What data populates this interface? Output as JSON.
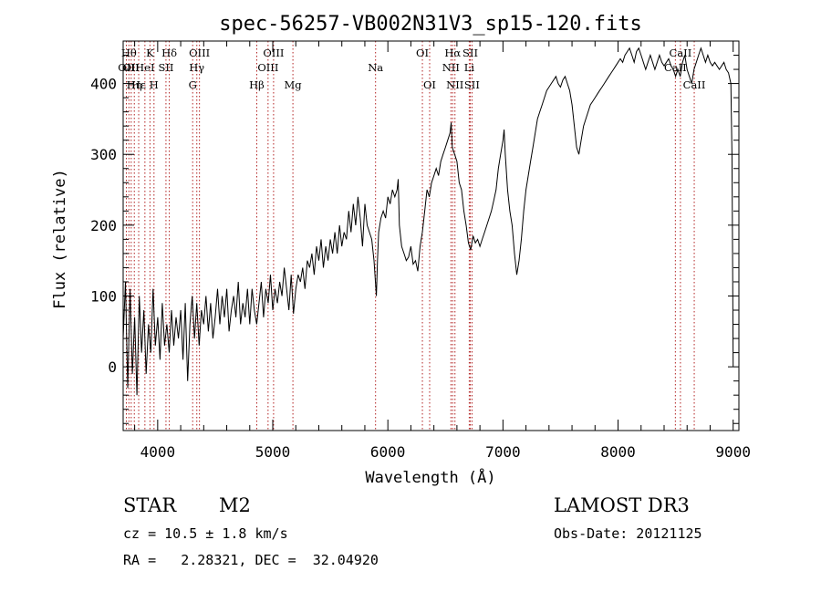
{
  "chart_data": {
    "type": "line",
    "title": "spec-56257-VB002N31V3_sp15-120.fits",
    "xlabel": "Wavelength (Å)",
    "ylabel": "Flux (relative)",
    "xlim": [
      3700,
      9050
    ],
    "ylim": [
      -90,
      460
    ],
    "xticks": [
      4000,
      5000,
      6000,
      7000,
      8000,
      9000
    ],
    "yticks": [
      0,
      100,
      200,
      300,
      400
    ],
    "grid": false,
    "series": [
      {
        "name": "flux",
        "color": "#000000",
        "points": [
          [
            3700,
            40
          ],
          [
            3720,
            120
          ],
          [
            3740,
            -30
          ],
          [
            3760,
            110
          ],
          [
            3780,
            -10
          ],
          [
            3800,
            70
          ],
          [
            3820,
            -40
          ],
          [
            3840,
            100
          ],
          [
            3860,
            20
          ],
          [
            3880,
            80
          ],
          [
            3900,
            -10
          ],
          [
            3920,
            60
          ],
          [
            3940,
            20
          ],
          [
            3960,
            110
          ],
          [
            3980,
            30
          ],
          [
            4000,
            70
          ],
          [
            4020,
            10
          ],
          [
            4040,
            90
          ],
          [
            4060,
            30
          ],
          [
            4080,
            60
          ],
          [
            4100,
            20
          ],
          [
            4120,
            80
          ],
          [
            4140,
            30
          ],
          [
            4160,
            70
          ],
          [
            4180,
            40
          ],
          [
            4200,
            80
          ],
          [
            4220,
            10
          ],
          [
            4240,
            90
          ],
          [
            4260,
            -20
          ],
          [
            4280,
            60
          ],
          [
            4300,
            100
          ],
          [
            4320,
            40
          ],
          [
            4340,
            90
          ],
          [
            4360,
            30
          ],
          [
            4380,
            80
          ],
          [
            4400,
            60
          ],
          [
            4420,
            100
          ],
          [
            4440,
            50
          ],
          [
            4460,
            90
          ],
          [
            4480,
            40
          ],
          [
            4500,
            70
          ],
          [
            4520,
            110
          ],
          [
            4540,
            60
          ],
          [
            4560,
            100
          ],
          [
            4580,
            70
          ],
          [
            4600,
            110
          ],
          [
            4620,
            50
          ],
          [
            4640,
            80
          ],
          [
            4660,
            100
          ],
          [
            4680,
            70
          ],
          [
            4700,
            120
          ],
          [
            4720,
            60
          ],
          [
            4740,
            90
          ],
          [
            4760,
            70
          ],
          [
            4780,
            110
          ],
          [
            4800,
            60
          ],
          [
            4820,
            110
          ],
          [
            4840,
            80
          ],
          [
            4860,
            60
          ],
          [
            4880,
            90
          ],
          [
            4900,
            120
          ],
          [
            4920,
            70
          ],
          [
            4940,
            110
          ],
          [
            4960,
            90
          ],
          [
            4980,
            130
          ],
          [
            5000,
            80
          ],
          [
            5020,
            110
          ],
          [
            5040,
            90
          ],
          [
            5060,
            120
          ],
          [
            5080,
            100
          ],
          [
            5100,
            140
          ],
          [
            5120,
            110
          ],
          [
            5140,
            80
          ],
          [
            5160,
            130
          ],
          [
            5180,
            75
          ],
          [
            5200,
            110
          ],
          [
            5220,
            130
          ],
          [
            5240,
            120
          ],
          [
            5260,
            140
          ],
          [
            5280,
            110
          ],
          [
            5300,
            150
          ],
          [
            5320,
            140
          ],
          [
            5340,
            160
          ],
          [
            5360,
            130
          ],
          [
            5380,
            170
          ],
          [
            5400,
            150
          ],
          [
            5420,
            180
          ],
          [
            5440,
            140
          ],
          [
            5460,
            170
          ],
          [
            5480,
            150
          ],
          [
            5500,
            180
          ],
          [
            5520,
            160
          ],
          [
            5540,
            190
          ],
          [
            5560,
            160
          ],
          [
            5580,
            200
          ],
          [
            5600,
            170
          ],
          [
            5620,
            190
          ],
          [
            5640,
            180
          ],
          [
            5660,
            220
          ],
          [
            5680,
            190
          ],
          [
            5700,
            230
          ],
          [
            5720,
            200
          ],
          [
            5740,
            240
          ],
          [
            5760,
            210
          ],
          [
            5780,
            170
          ],
          [
            5800,
            230
          ],
          [
            5820,
            200
          ],
          [
            5840,
            190
          ],
          [
            5860,
            180
          ],
          [
            5880,
            150
          ],
          [
            5900,
            100
          ],
          [
            5910,
            150
          ],
          [
            5920,
            190
          ],
          [
            5940,
            210
          ],
          [
            5960,
            220
          ],
          [
            5980,
            210
          ],
          [
            6000,
            240
          ],
          [
            6020,
            230
          ],
          [
            6040,
            250
          ],
          [
            6060,
            240
          ],
          [
            6080,
            250
          ],
          [
            6090,
            265
          ],
          [
            6100,
            200
          ],
          [
            6120,
            170
          ],
          [
            6140,
            160
          ],
          [
            6160,
            150
          ],
          [
            6180,
            155
          ],
          [
            6200,
            170
          ],
          [
            6220,
            145
          ],
          [
            6240,
            150
          ],
          [
            6260,
            135
          ],
          [
            6280,
            170
          ],
          [
            6300,
            190
          ],
          [
            6320,
            220
          ],
          [
            6340,
            250
          ],
          [
            6360,
            240
          ],
          [
            6380,
            260
          ],
          [
            6400,
            270
          ],
          [
            6420,
            280
          ],
          [
            6440,
            270
          ],
          [
            6460,
            290
          ],
          [
            6480,
            300
          ],
          [
            6500,
            310
          ],
          [
            6520,
            320
          ],
          [
            6540,
            330
          ],
          [
            6550,
            345
          ],
          [
            6560,
            310
          ],
          [
            6580,
            300
          ],
          [
            6600,
            290
          ],
          [
            6620,
            260
          ],
          [
            6640,
            250
          ],
          [
            6660,
            220
          ],
          [
            6680,
            200
          ],
          [
            6700,
            175
          ],
          [
            6720,
            165
          ],
          [
            6740,
            185
          ],
          [
            6760,
            175
          ],
          [
            6780,
            180
          ],
          [
            6800,
            170
          ],
          [
            6820,
            180
          ],
          [
            6840,
            190
          ],
          [
            6860,
            200
          ],
          [
            6880,
            210
          ],
          [
            6900,
            220
          ],
          [
            6920,
            235
          ],
          [
            6940,
            250
          ],
          [
            6960,
            280
          ],
          [
            6980,
            300
          ],
          [
            7000,
            320
          ],
          [
            7010,
            335
          ],
          [
            7020,
            300
          ],
          [
            7040,
            250
          ],
          [
            7060,
            220
          ],
          [
            7080,
            200
          ],
          [
            7100,
            160
          ],
          [
            7120,
            130
          ],
          [
            7140,
            150
          ],
          [
            7160,
            180
          ],
          [
            7180,
            220
          ],
          [
            7200,
            250
          ],
          [
            7220,
            270
          ],
          [
            7240,
            290
          ],
          [
            7260,
            310
          ],
          [
            7280,
            330
          ],
          [
            7300,
            350
          ],
          [
            7320,
            360
          ],
          [
            7340,
            370
          ],
          [
            7360,
            380
          ],
          [
            7380,
            390
          ],
          [
            7400,
            395
          ],
          [
            7420,
            400
          ],
          [
            7440,
            405
          ],
          [
            7460,
            410
          ],
          [
            7480,
            400
          ],
          [
            7500,
            395
          ],
          [
            7520,
            405
          ],
          [
            7540,
            410
          ],
          [
            7560,
            400
          ],
          [
            7580,
            390
          ],
          [
            7600,
            370
          ],
          [
            7620,
            340
          ],
          [
            7640,
            310
          ],
          [
            7660,
            300
          ],
          [
            7680,
            320
          ],
          [
            7700,
            340
          ],
          [
            7720,
            350
          ],
          [
            7740,
            360
          ],
          [
            7760,
            370
          ],
          [
            7780,
            375
          ],
          [
            7800,
            380
          ],
          [
            7820,
            385
          ],
          [
            7840,
            390
          ],
          [
            7860,
            395
          ],
          [
            7880,
            400
          ],
          [
            7900,
            405
          ],
          [
            7920,
            410
          ],
          [
            7940,
            415
          ],
          [
            7960,
            420
          ],
          [
            7980,
            425
          ],
          [
            8000,
            430
          ],
          [
            8020,
            435
          ],
          [
            8040,
            430
          ],
          [
            8060,
            440
          ],
          [
            8080,
            445
          ],
          [
            8100,
            450
          ],
          [
            8120,
            440
          ],
          [
            8140,
            430
          ],
          [
            8160,
            445
          ],
          [
            8180,
            450
          ],
          [
            8200,
            440
          ],
          [
            8220,
            430
          ],
          [
            8240,
            420
          ],
          [
            8260,
            430
          ],
          [
            8280,
            440
          ],
          [
            8300,
            430
          ],
          [
            8320,
            420
          ],
          [
            8340,
            430
          ],
          [
            8360,
            440
          ],
          [
            8380,
            430
          ],
          [
            8400,
            425
          ],
          [
            8420,
            430
          ],
          [
            8440,
            435
          ],
          [
            8460,
            425
          ],
          [
            8480,
            420
          ],
          [
            8500,
            410
          ],
          [
            8520,
            420
          ],
          [
            8540,
            410
          ],
          [
            8560,
            430
          ],
          [
            8580,
            440
          ],
          [
            8600,
            420
          ],
          [
            8620,
            410
          ],
          [
            8640,
            400
          ],
          [
            8660,
            420
          ],
          [
            8680,
            430
          ],
          [
            8700,
            440
          ],
          [
            8720,
            450
          ],
          [
            8740,
            440
          ],
          [
            8760,
            430
          ],
          [
            8780,
            440
          ],
          [
            8800,
            430
          ],
          [
            8820,
            425
          ],
          [
            8840,
            430
          ],
          [
            8860,
            425
          ],
          [
            8880,
            420
          ],
          [
            8900,
            425
          ],
          [
            8920,
            430
          ],
          [
            8940,
            420
          ],
          [
            8960,
            415
          ],
          [
            8980,
            400
          ],
          [
            8985,
            350
          ],
          [
            8990,
            300
          ],
          [
            8995,
            150
          ],
          [
            9000,
            0
          ]
        ]
      }
    ],
    "lines": [
      {
        "x": 3728,
        "label": "OII",
        "row": 2
      },
      {
        "x": 3750,
        "label": "Hθ",
        "row": 1
      },
      {
        "x": 3770,
        "label": "OII",
        "row": 2
      },
      {
        "x": 3797,
        "label": "Hη",
        "row": 3
      },
      {
        "x": 3835,
        "label": "Hε",
        "row": 3
      },
      {
        "x": 3889,
        "label": "HeI",
        "row": 2
      },
      {
        "x": 3933,
        "label": "K",
        "row": 1
      },
      {
        "x": 3968,
        "label": "H",
        "row": 3
      },
      {
        "x": 4072,
        "label": "SII",
        "row": 2
      },
      {
        "x": 4101,
        "label": "Hδ",
        "row": 1
      },
      {
        "x": 4304,
        "label": "G",
        "row": 3
      },
      {
        "x": 4340,
        "label": "Hγ",
        "row": 2
      },
      {
        "x": 4363,
        "label": "OIII",
        "row": 1
      },
      {
        "x": 4861,
        "label": "Hβ",
        "row": 3
      },
      {
        "x": 4959,
        "label": "OIII",
        "row": 2
      },
      {
        "x": 5007,
        "label": "OIII",
        "row": 1
      },
      {
        "x": 5175,
        "label": "Mg",
        "row": 3
      },
      {
        "x": 5893,
        "label": "Na",
        "row": 2
      },
      {
        "x": 6300,
        "label": "OI",
        "row": 1
      },
      {
        "x": 6363,
        "label": "OI",
        "row": 3
      },
      {
        "x": 6548,
        "label": "NII",
        "row": 2
      },
      {
        "x": 6563,
        "label": "Hα",
        "row": 1
      },
      {
        "x": 6583,
        "label": "NII",
        "row": 3
      },
      {
        "x": 6707,
        "label": "Li",
        "row": 2
      },
      {
        "x": 6716,
        "label": "SII",
        "row": 1
      },
      {
        "x": 6731,
        "label": "SII",
        "row": 3
      },
      {
        "x": 8498,
        "label": "CaII",
        "row": 2
      },
      {
        "x": 8542,
        "label": "CaII",
        "row": 1
      },
      {
        "x": 8662,
        "label": "CaII",
        "row": 3
      }
    ]
  },
  "info": {
    "object_class": "STAR",
    "subclass": "M2",
    "survey": "LAMOST DR3",
    "cz": "cz = 10.5 ± 1.8 km/s",
    "obs_date": "Obs-Date: 20121125",
    "coords": "RA =   2.28321, DEC =  32.04920"
  },
  "colors": {
    "line_marker": "#b22222",
    "spectrum": "#000000",
    "axis": "#000000"
  }
}
